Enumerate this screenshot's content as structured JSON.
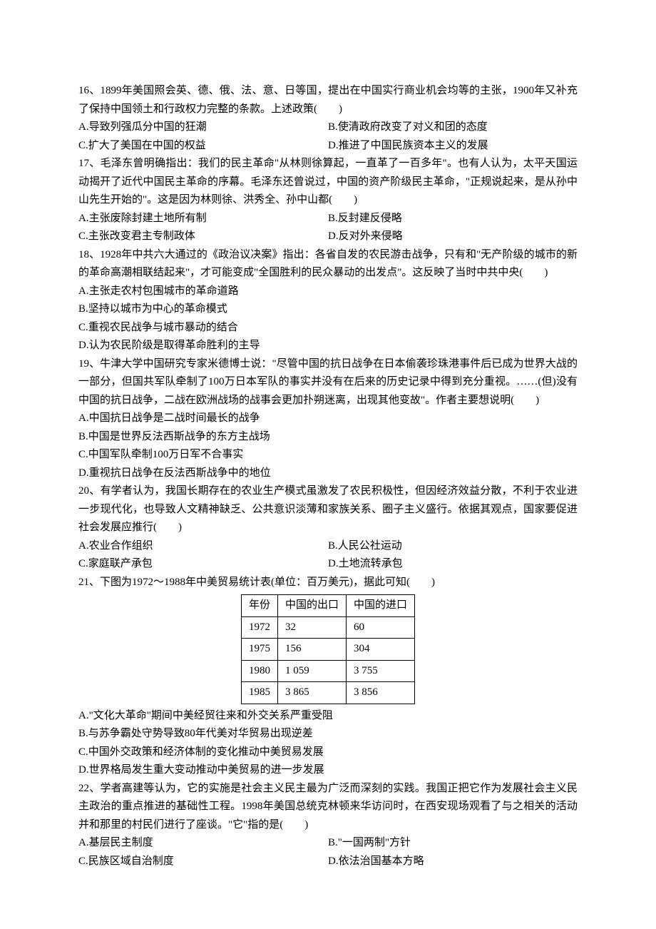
{
  "q16": {
    "stem": "16、1899年美国照会英、德、俄、法、意、日等国，提出在中国实行商业机会均等的主张，1900年又补充了保持中国领土和行政权力完整的条款。上述政策(　　)",
    "A": "A.导致列强瓜分中国的狂潮",
    "B": "B.使清政府改变了对义和团的态度",
    "C": "C.扩大了美国在中国的权益",
    "D": "D.推进了中国民族资本主义的发展"
  },
  "q17": {
    "stem": "17、毛泽东曾明确指出：我们的民主革命\"从林则徐算起，一直革了一百多年\"。也有人认为，太平天国运动揭开了近代中国民主革命的序幕。毛泽东还曾说过，中国的资产阶级民主革命，\"正规说起来，是从孙中山先生开始的\"。这是因为林则徐、洪秀全、孙中山都(　　)",
    "A": "A.主张废除封建土地所有制",
    "B": "B.反封建反侵略",
    "C": "C.主张改变君主专制政体",
    "D": "D.反对外来侵略"
  },
  "q18": {
    "stem": "18、1928年中共六大通过的《政治议决案》指出：各省自发的农民游击战争，只有和\"无产阶级的城市的新的革命高潮相联结起来\"，才可能变成\"全国胜利的民众暴动的出发点\"。这反映了当时中共中央(　　)",
    "A": "A.主张走农村包围城市的革命道路",
    "B": "B.坚持以城市为中心的革命模式",
    "C": "C.重视农民战争与城市暴动的结合",
    "D": "D.认为农民阶级是取得革命胜利的主导"
  },
  "q19": {
    "stem": "19、牛津大学中国研究专家米德博士说：\"尽管中国的抗日战争在日本偷袭珍珠港事件后已成为世界大战的一部分，但国共军队牵制了100万日本军队的事实并没有在后来的历史记录中得到充分重视。……(但)没有中国的抗日战争，二战在欧洲战场的战事会更加扑朔迷离，出现其他变故\"。作者主要想说明(　　)",
    "A": "A.中国抗日战争是二战时间最长的战争",
    "B": "B.中国是世界反法西斯战争的东方主战场",
    "C": "C.中国军队牵制100万日军不合事实",
    "D": "D.重视抗日战争在反法西斯战争中的地位"
  },
  "q20": {
    "stem": "20、有学者认为，我国长期存在的农业生产模式虽激发了农民积极性，但因经济效益分散，不利于农业进一步现代化，也导致人文精神缺乏、公共意识淡薄和家族关系、圈子主义盛行。依据其观点，国家要促进社会发展应推行(　　)",
    "A": "A.农业合作组织",
    "B": "B.人民公社运动",
    "C": "C.家庭联产承包",
    "D": "D.土地流转承包"
  },
  "q21": {
    "stem": "21、下图为1972～1988年中美贸易统计表(单位：百万美元)，据此可知(　　)",
    "table": {
      "h1": "年份",
      "h2": "中国的出口",
      "h3": "中国的进口",
      "r1c1": "1972",
      "r1c2": "32",
      "r1c3": "60",
      "r2c1": "1975",
      "r2c2": "156",
      "r2c3": "304",
      "r3c1": "1980",
      "r3c2": "1 059",
      "r3c3": "3 755",
      "r4c1": "1985",
      "r4c2": "3 865",
      "r4c3": "3 856"
    },
    "A": "A.\"文化大革命\"期间中美经贸往来和外交关系严重受阻",
    "B": "B.与苏争霸处守势导致80年代美对华贸易出现逆差",
    "C": "C.中国外交政策和经济体制的变化推动中美贸易发展",
    "D": "D.世界格局发生重大变动推动中美贸易的进一步发展"
  },
  "q22": {
    "stem": "22、学者高建等认为，它的实施是社会主义民主最为广泛而深刻的实践。我国正把它作为发展社会主义民主政治的重点推进的基础性工程。1998年美国总统克林顿来华访问时，在西安现场观看了与之相关的活动并和那里的村民们进行了座谈。\"它\"指的是(　　)",
    "A": "A.基层民主制度",
    "B": "B.\"一国两制\"方针",
    "C": "C.民族区域自治制度",
    "D": "D.依法治国基本方略"
  }
}
